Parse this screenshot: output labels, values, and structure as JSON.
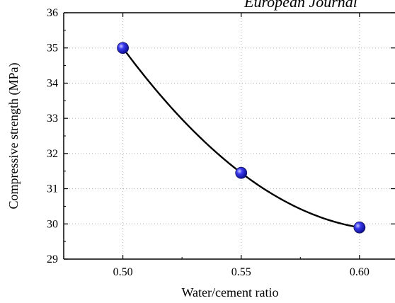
{
  "header_text": "European Journal",
  "chart_data": {
    "type": "scatter",
    "title": "",
    "xlabel": "Water/cement ratio",
    "ylabel": "Compressive strength (MPa)",
    "xlim": [
      0.475,
      0.615
    ],
    "ylim": [
      29,
      36
    ],
    "xticks": [
      "0.50",
      "0.55",
      "0.60"
    ],
    "xtick_values": [
      0.5,
      0.55,
      0.6
    ],
    "yticks": [
      "29",
      "30",
      "31",
      "32",
      "33",
      "34",
      "35",
      "36"
    ],
    "ytick_values": [
      29,
      30,
      31,
      32,
      33,
      34,
      35,
      36
    ],
    "grid": true,
    "grid_style": "dotted",
    "series": [
      {
        "points": [
          {
            "x": 0.5,
            "y": 35.0
          },
          {
            "x": 0.55,
            "y": 31.45
          },
          {
            "x": 0.6,
            "y": 29.9
          }
        ],
        "marker_color": "#1f1fd6",
        "fit": "quadratic",
        "fit_color": "#000000"
      }
    ]
  }
}
